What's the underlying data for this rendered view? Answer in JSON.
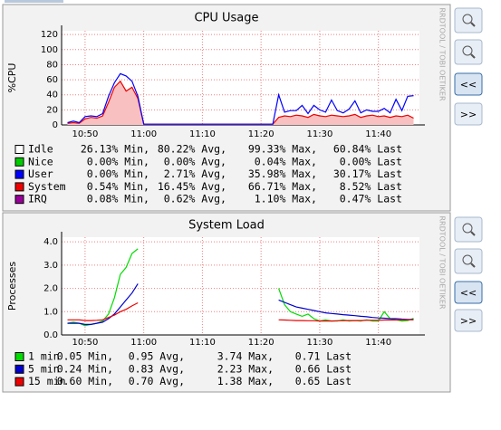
{
  "chart_data": [
    {
      "type": "area",
      "title": "CPU Usage",
      "ylabel": "%CPU",
      "stacked": true,
      "grid": true,
      "ylim": [
        0,
        125
      ],
      "yticks": [
        0,
        20,
        40,
        60,
        80,
        100,
        120
      ],
      "xlim": [
        "10:46",
        "11:47"
      ],
      "xticks": [
        "10:50",
        "11:00",
        "11:10",
        "11:20",
        "11:30",
        "11:40"
      ],
      "x": [
        "10:47",
        "10:48",
        "10:49",
        "10:50",
        "10:51",
        "10:52",
        "10:53",
        "10:54",
        "10:55",
        "10:56",
        "10:57",
        "10:58",
        "10:59",
        "11:00",
        "11:01",
        "11:02",
        "11:03",
        "11:04",
        "11:05",
        "11:06",
        "11:07",
        "11:08",
        "11:09",
        "11:10",
        "11:11",
        "11:12",
        "11:13",
        "11:14",
        "11:15",
        "11:16",
        "11:17",
        "11:18",
        "11:19",
        "11:20",
        "11:21",
        "11:22",
        "11:23",
        "11:24",
        "11:25",
        "11:26",
        "11:27",
        "11:28",
        "11:29",
        "11:30",
        "11:31",
        "11:32",
        "11:33",
        "11:34",
        "11:35",
        "11:36",
        "11:37",
        "11:38",
        "11:39",
        "11:40",
        "11:41",
        "11:42",
        "11:43",
        "11:44",
        "11:45",
        "11:46"
      ],
      "series": [
        {
          "name": "Idle",
          "color": "#ffffff",
          "stats": [
            "26.13% Min,",
            "80.22% Avg,",
            "99.33% Max,",
            "60.84% Last"
          ]
        },
        {
          "name": "Nice",
          "color": "#00cc00",
          "stats": [
            "0.00% Min,",
            "0.00% Avg,",
            "0.04% Max,",
            "0.00% Last"
          ]
        },
        {
          "name": "User",
          "color": "#0000ff",
          "stats": [
            "0.00% Min,",
            "2.71% Avg,",
            "35.98% Max,",
            "30.17% Last"
          ],
          "values": [
            1,
            2,
            1,
            3,
            2,
            2,
            3,
            8,
            6,
            10,
            20,
            8,
            3,
            0,
            0,
            0,
            0,
            0,
            0,
            0,
            0,
            0,
            0,
            0,
            0,
            0,
            0,
            0,
            0,
            0,
            0,
            0,
            0,
            0,
            0,
            0,
            30,
            5,
            8,
            6,
            14,
            5,
            12,
            8,
            6,
            20,
            7,
            5,
            9,
            18,
            6,
            8,
            5,
            7,
            10,
            6,
            22,
            8,
            25,
            30
          ]
        },
        {
          "name": "System",
          "color": "#ee0000",
          "fill": "#f8c0c0",
          "stats": [
            "0.54% Min,",
            "16.45% Avg,",
            "66.71% Max,",
            "8.52% Last"
          ],
          "values": [
            2,
            3,
            2,
            8,
            10,
            9,
            12,
            30,
            50,
            58,
            45,
            50,
            35,
            1,
            1,
            1,
            1,
            1,
            1,
            1,
            1,
            1,
            1,
            1,
            1,
            1,
            1,
            1,
            1,
            1,
            1,
            1,
            1,
            1,
            1,
            1,
            10,
            12,
            11,
            13,
            12,
            10,
            14,
            12,
            11,
            13,
            12,
            11,
            12,
            14,
            10,
            12,
            13,
            11,
            12,
            10,
            12,
            11,
            13,
            9
          ]
        },
        {
          "name": "IRQ",
          "color": "#990099",
          "stats": [
            "0.08% Min,",
            "0.62% Avg,",
            "1.10% Max,",
            "0.47% Last"
          ]
        }
      ]
    },
    {
      "type": "line",
      "title": "System Load",
      "ylabel": "Processes",
      "grid": true,
      "ylim": [
        0,
        4.2
      ],
      "yticks": [
        {
          "value": 0,
          "label": "0.0"
        },
        {
          "value": 1,
          "label": "1.0"
        },
        {
          "value": 2,
          "label": "2.0"
        },
        {
          "value": 3,
          "label": "3.0"
        },
        {
          "value": 4,
          "label": "4.0"
        }
      ],
      "xlim": [
        "10:46",
        "11:47"
      ],
      "xticks": [
        "10:50",
        "11:00",
        "11:10",
        "11:20",
        "11:30",
        "11:40"
      ],
      "x": [
        "10:47",
        "10:48",
        "10:49",
        "10:50",
        "10:51",
        "10:52",
        "10:53",
        "10:54",
        "10:55",
        "10:56",
        "10:57",
        "10:58",
        "10:59",
        "11:00",
        "11:01",
        "11:02",
        "11:03",
        "11:04",
        "11:05",
        "11:06",
        "11:07",
        "11:08",
        "11:09",
        "11:10",
        "11:11",
        "11:12",
        "11:13",
        "11:14",
        "11:15",
        "11:16",
        "11:17",
        "11:18",
        "11:19",
        "11:20",
        "11:21",
        "11:22",
        "11:23",
        "11:24",
        "11:25",
        "11:26",
        "11:27",
        "11:28",
        "11:29",
        "11:30",
        "11:31",
        "11:32",
        "11:33",
        "11:34",
        "11:35",
        "11:36",
        "11:37",
        "11:38",
        "11:39",
        "11:40",
        "11:41",
        "11:42",
        "11:43",
        "11:44",
        "11:45",
        "11:46"
      ],
      "series": [
        {
          "name": "1 min",
          "color": "#00dd00",
          "stats": [
            "0.05 Min,",
            "0.95 Avg,",
            "3.74 Max,",
            "0.71 Last"
          ],
          "values": [
            0.5,
            0.55,
            0.5,
            0.4,
            0.45,
            0.5,
            0.6,
            0.9,
            1.6,
            2.6,
            2.9,
            3.5,
            3.7,
            null,
            null,
            null,
            null,
            null,
            null,
            null,
            null,
            null,
            null,
            null,
            null,
            null,
            null,
            null,
            null,
            null,
            null,
            null,
            null,
            null,
            null,
            null,
            2.0,
            1.3,
            1.0,
            0.9,
            0.8,
            0.9,
            0.7,
            0.6,
            0.65,
            0.6,
            0.6,
            0.65,
            0.6,
            0.62,
            0.6,
            0.65,
            0.6,
            0.6,
            1.0,
            0.7,
            0.65,
            0.6,
            0.62,
            0.71
          ]
        },
        {
          "name": "5 min",
          "color": "#0000cc",
          "stats": [
            "0.24 Min,",
            "0.83 Avg,",
            "2.23 Max,",
            "0.66 Last"
          ],
          "values": [
            0.5,
            0.5,
            0.5,
            0.45,
            0.45,
            0.5,
            0.55,
            0.7,
            0.9,
            1.2,
            1.5,
            1.8,
            2.2,
            null,
            null,
            null,
            null,
            null,
            null,
            null,
            null,
            null,
            null,
            null,
            null,
            null,
            null,
            null,
            null,
            null,
            null,
            null,
            null,
            null,
            null,
            null,
            1.5,
            1.4,
            1.3,
            1.2,
            1.15,
            1.1,
            1.05,
            1.0,
            0.95,
            0.92,
            0.9,
            0.87,
            0.85,
            0.83,
            0.8,
            0.78,
            0.75,
            0.73,
            0.72,
            0.7,
            0.7,
            0.68,
            0.67,
            0.66
          ]
        },
        {
          "name": "15 min",
          "color": "#ee0000",
          "stats": [
            "0.60 Min,",
            "0.70 Avg,",
            "1.38 Max,",
            "0.65 Last"
          ],
          "values": [
            0.65,
            0.65,
            0.65,
            0.62,
            0.62,
            0.63,
            0.65,
            0.75,
            0.85,
            1.0,
            1.1,
            1.25,
            1.38,
            null,
            null,
            null,
            null,
            null,
            null,
            null,
            null,
            null,
            null,
            null,
            null,
            null,
            null,
            null,
            null,
            null,
            null,
            null,
            null,
            null,
            null,
            null,
            0.65,
            0.64,
            0.63,
            0.62,
            0.62,
            0.61,
            0.61,
            0.6,
            0.6,
            0.6,
            0.61,
            0.61,
            0.62,
            0.62,
            0.62,
            0.63,
            0.63,
            0.63,
            0.64,
            0.64,
            0.64,
            0.65,
            0.65,
            0.65
          ]
        }
      ]
    }
  ],
  "watermark": "RRDTOOL / TOBI OETIKER",
  "buttons": {
    "back": "<<",
    "forward": ">>"
  }
}
